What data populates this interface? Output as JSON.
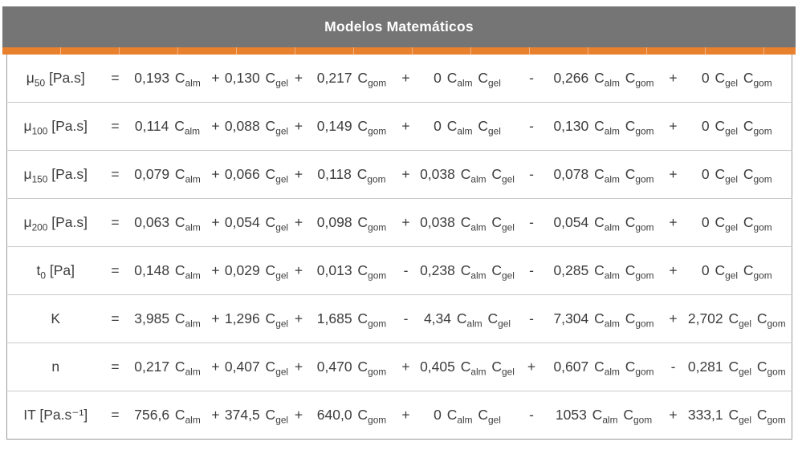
{
  "header": {
    "title": "Modelos Matemáticos"
  },
  "colors": {
    "header_bg": "#757575",
    "accent_orange": "#E8802E",
    "text": "#3C3C3C",
    "row_border": "#C9C9C9",
    "outer_border": "#9A9A9A"
  },
  "table": {
    "equals_sign": "=",
    "variable_prefix": "C",
    "rows": [
      {
        "sym": "μ",
        "sub": "50",
        "unit": "[Pa.s]",
        "terms": [
          {
            "op": "",
            "coef": "0,193",
            "vars": [
              "alm"
            ]
          },
          {
            "op": "+",
            "coef": "0,130",
            "vars": [
              "gel"
            ]
          },
          {
            "op": "+",
            "coef": "0,217",
            "vars": [
              "gom"
            ]
          },
          {
            "op": "+",
            "coef": "0",
            "vars": [
              "alm",
              "gel"
            ]
          },
          {
            "op": "-",
            "coef": "0,266",
            "vars": [
              "alm",
              "gom"
            ]
          },
          {
            "op": "+",
            "coef": "0",
            "vars": [
              "gel",
              "gom"
            ]
          }
        ]
      },
      {
        "sym": "μ",
        "sub": "100",
        "unit": "[Pa.s]",
        "terms": [
          {
            "op": "",
            "coef": "0,114",
            "vars": [
              "alm"
            ]
          },
          {
            "op": "+",
            "coef": "0,088",
            "vars": [
              "gel"
            ]
          },
          {
            "op": "+",
            "coef": "0,149",
            "vars": [
              "gom"
            ]
          },
          {
            "op": "+",
            "coef": "0",
            "vars": [
              "alm",
              "gel"
            ]
          },
          {
            "op": "-",
            "coef": "0,130",
            "vars": [
              "alm",
              "gom"
            ]
          },
          {
            "op": "+",
            "coef": "0",
            "vars": [
              "gel",
              "gom"
            ]
          }
        ]
      },
      {
        "sym": "μ",
        "sub": "150",
        "unit": "[Pa.s]",
        "terms": [
          {
            "op": "",
            "coef": "0,079",
            "vars": [
              "alm"
            ]
          },
          {
            "op": "+",
            "coef": "0,066",
            "vars": [
              "gel"
            ]
          },
          {
            "op": "+",
            "coef": "0,118",
            "vars": [
              "gom"
            ]
          },
          {
            "op": "+",
            "coef": "0,038",
            "vars": [
              "alm",
              "gel"
            ]
          },
          {
            "op": "-",
            "coef": "0,078",
            "vars": [
              "alm",
              "gom"
            ]
          },
          {
            "op": "+",
            "coef": "0",
            "vars": [
              "gel",
              "gom"
            ]
          }
        ]
      },
      {
        "sym": "μ",
        "sub": "200",
        "unit": "[Pa.s]",
        "terms": [
          {
            "op": "",
            "coef": "0,063",
            "vars": [
              "alm"
            ]
          },
          {
            "op": "+",
            "coef": "0,054",
            "vars": [
              "gel"
            ]
          },
          {
            "op": "+",
            "coef": "0,098",
            "vars": [
              "gom"
            ]
          },
          {
            "op": "+",
            "coef": "0,038",
            "vars": [
              "alm",
              "gel"
            ]
          },
          {
            "op": "-",
            "coef": "0,054",
            "vars": [
              "alm",
              "gom"
            ]
          },
          {
            "op": "+",
            "coef": "0",
            "vars": [
              "gel",
              "gom"
            ]
          }
        ]
      },
      {
        "sym": "t",
        "sub": "0",
        "unit": "[Pa]",
        "terms": [
          {
            "op": "",
            "coef": "0,148",
            "vars": [
              "alm"
            ]
          },
          {
            "op": "+",
            "coef": "0,029",
            "vars": [
              "gel"
            ]
          },
          {
            "op": "+",
            "coef": "0,013",
            "vars": [
              "gom"
            ]
          },
          {
            "op": "-",
            "coef": "0,238",
            "vars": [
              "alm",
              "gel"
            ]
          },
          {
            "op": "-",
            "coef": "0,285",
            "vars": [
              "alm",
              "gom"
            ]
          },
          {
            "op": "+",
            "coef": "0",
            "vars": [
              "gel",
              "gom"
            ]
          }
        ]
      },
      {
        "sym": "K",
        "sub": "",
        "unit": "",
        "terms": [
          {
            "op": "",
            "coef": "3,985",
            "vars": [
              "alm"
            ]
          },
          {
            "op": "+",
            "coef": "1,296",
            "vars": [
              "gel"
            ]
          },
          {
            "op": "+",
            "coef": "1,685",
            "vars": [
              "gom"
            ]
          },
          {
            "op": "-",
            "coef": "4,34",
            "vars": [
              "alm",
              "gel"
            ]
          },
          {
            "op": "-",
            "coef": "7,304",
            "vars": [
              "alm",
              "gom"
            ]
          },
          {
            "op": "+",
            "coef": "2,702",
            "vars": [
              "gel",
              "gom"
            ]
          }
        ]
      },
      {
        "sym": "n",
        "sub": "",
        "unit": "",
        "terms": [
          {
            "op": "",
            "coef": "0,217",
            "vars": [
              "alm"
            ]
          },
          {
            "op": "+",
            "coef": "0,407",
            "vars": [
              "gel"
            ]
          },
          {
            "op": "+",
            "coef": "0,470",
            "vars": [
              "gom"
            ]
          },
          {
            "op": "+",
            "coef": "0,405",
            "vars": [
              "alm",
              "gel"
            ]
          },
          {
            "op": "+",
            "coef": "0,607",
            "vars": [
              "alm",
              "gom"
            ]
          },
          {
            "op": "-",
            "coef": "0,281",
            "vars": [
              "gel",
              "gom"
            ]
          }
        ]
      },
      {
        "sym": "IT",
        "sub": "",
        "unit": "[Pa.s⁻¹]",
        "terms": [
          {
            "op": "",
            "coef": "756,6",
            "vars": [
              "alm"
            ]
          },
          {
            "op": "+",
            "coef": "374,5",
            "vars": [
              "gel"
            ]
          },
          {
            "op": "+",
            "coef": "640,0",
            "vars": [
              "gom"
            ]
          },
          {
            "op": "+",
            "coef": "0",
            "vars": [
              "alm",
              "gel"
            ]
          },
          {
            "op": "-",
            "coef": "1053",
            "vars": [
              "alm",
              "gom"
            ]
          },
          {
            "op": "+",
            "coef": "333,1",
            "vars": [
              "gel",
              "gom"
            ]
          }
        ]
      }
    ]
  }
}
